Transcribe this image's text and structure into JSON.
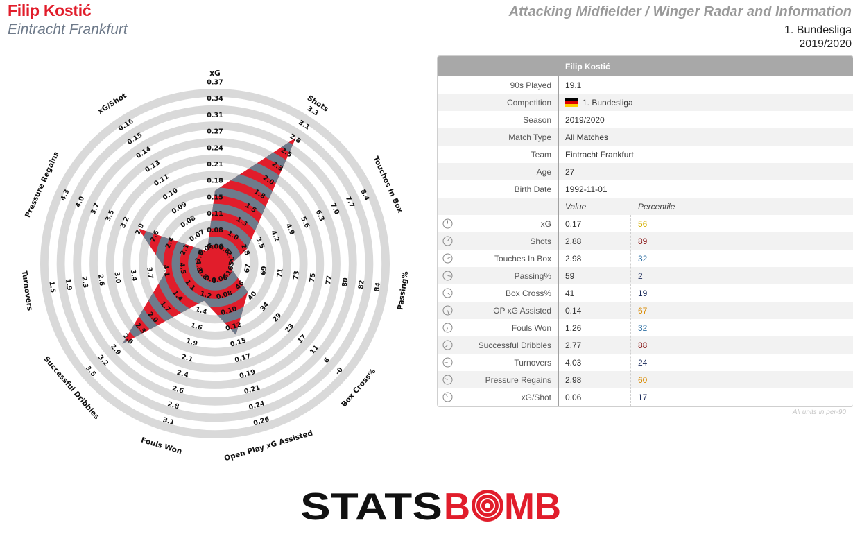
{
  "header": {
    "player_name": "Filip Kostić",
    "team_name": "Eintracht Frankfurt",
    "title": "Attacking Midfielder / Winger Radar and Information",
    "league": "1. Bundesliga",
    "season": "2019/2020"
  },
  "colors": {
    "red": "#e11d2b",
    "slate": "#6e7b8b",
    "ring": "#d9d9d9",
    "pct_green": "#1f7a2a",
    "pct_yellow": "#d4b000",
    "pct_orange": "#d98a00",
    "pct_darkred": "#8b1a1a",
    "pct_blue": "#2e6fa3",
    "pct_navy": "#1a2a5a"
  },
  "chart_data": {
    "type": "radar",
    "axes": [
      {
        "name": "xG",
        "value": 0.17,
        "ticks": [
          "0.06",
          "0.08",
          "0.11",
          "0.15",
          "0.18",
          "0.21",
          "0.24",
          "0.27",
          "0.31",
          "0.34",
          "0.37"
        ],
        "tick_start": 0.06,
        "tick_step": 0.031
      },
      {
        "name": "Shots",
        "value": 2.88,
        "ticks": [
          "0.8",
          "1.0",
          "1.3",
          "1.5",
          "1.8",
          "2.0",
          "2.3",
          "2.5",
          "2.8",
          "3.1",
          "3.3"
        ],
        "tick_start": 0.8,
        "tick_step": 0.253
      },
      {
        "name": "Touches In Box",
        "value": 2.98,
        "ticks": [
          "2.1",
          "2.8",
          "3.5",
          "4.2",
          "4.9",
          "5.6",
          "6.3",
          "7.0",
          "7.7",
          "8.4"
        ],
        "tick_start": 2.1,
        "tick_step": 0.7
      },
      {
        "name": "Passing%",
        "value": 59,
        "ticks": [
          "65",
          "67",
          "69",
          "71",
          "73",
          "75",
          "77",
          "80",
          "82",
          "84"
        ],
        "tick_start": 65,
        "tick_step": 2.1
      },
      {
        "name": "Box Cross%",
        "value": 41,
        "ticks": [
          "51",
          "46",
          "40",
          "34",
          "29",
          "23",
          "17",
          "11",
          "6",
          "-0"
        ],
        "tick_start": 51,
        "tick_step": -5.7
      },
      {
        "name": "Open Play xG Assisted",
        "value": 0.14,
        "ticks": [
          "0.06",
          "0.08",
          "0.10",
          "0.12",
          "0.15",
          "0.17",
          "0.19",
          "0.21",
          "0.24",
          "0.26"
        ],
        "tick_start": 0.06,
        "tick_step": 0.022
      },
      {
        "name": "Fouls Won",
        "value": 1.26,
        "ticks": [
          "0.9",
          "1.2",
          "1.4",
          "1.6",
          "1.9",
          "2.1",
          "2.4",
          "2.6",
          "2.8",
          "3.1"
        ],
        "tick_start": 0.9,
        "tick_step": 0.244
      },
      {
        "name": "Successful Dribbles",
        "value": 2.77,
        "ticks": [
          "0.8",
          "1.1",
          "1.4",
          "1.7",
          "2.0",
          "2.3",
          "2.6",
          "2.9",
          "3.2",
          "3.5"
        ],
        "tick_start": 0.8,
        "tick_step": 0.3
      },
      {
        "name": "Turnovers",
        "value": 4.03,
        "ticks": [
          "4.8",
          "4.5",
          "4.1",
          "3.7",
          "3.4",
          "3.0",
          "2.6",
          "2.3",
          "1.9",
          "1.5"
        ],
        "tick_start": 4.8,
        "tick_step": -0.367
      },
      {
        "name": "Pressure Regains",
        "value": 2.98,
        "ticks": [
          "1.8",
          "2.1",
          "2.4",
          "2.6",
          "2.9",
          "3.2",
          "3.5",
          "3.7",
          "4.0",
          "4.3"
        ],
        "tick_start": 1.8,
        "tick_step": 0.278
      },
      {
        "name": "xG/Shot",
        "value": 0.06,
        "ticks": [
          "0.06",
          "0.07",
          "0.08",
          "0.09",
          "0.10",
          "0.11",
          "0.13",
          "0.14",
          "0.15",
          "0.16"
        ],
        "tick_start": 0.06,
        "tick_step": 0.0114
      }
    ]
  },
  "table": {
    "header": "Filip Kostić",
    "info_rows": [
      {
        "label": "90s Played",
        "value": "19.1"
      },
      {
        "label": "Competition",
        "value": "1. Bundesliga",
        "flag": "germany-flag"
      },
      {
        "label": "Season",
        "value": "2019/2020"
      },
      {
        "label": "Match Type",
        "value": "All Matches"
      },
      {
        "label": "Team",
        "value": "Eintracht Frankfurt"
      },
      {
        "label": "Age",
        "value": "27"
      },
      {
        "label": "Birth Date",
        "value": "1992-11-01"
      }
    ],
    "value_header": "Value",
    "percentile_header": "Percentile",
    "metric_rows": [
      {
        "label": "xG",
        "value": "0.17",
        "percentile": "56",
        "color": "#d4b000"
      },
      {
        "label": "Shots",
        "value": "2.88",
        "percentile": "89",
        "color": "#8b1a1a"
      },
      {
        "label": "Touches In Box",
        "value": "2.98",
        "percentile": "32",
        "color": "#2e6fa3"
      },
      {
        "label": "Passing%",
        "value": "59",
        "percentile": "2",
        "color": "#1a2a5a"
      },
      {
        "label": "Box Cross%",
        "value": "41",
        "percentile": "19",
        "color": "#1a2a5a"
      },
      {
        "label": "OP xG Assisted",
        "value": "0.14",
        "percentile": "67",
        "color": "#d98a00"
      },
      {
        "label": "Fouls Won",
        "value": "1.26",
        "percentile": "32",
        "color": "#2e6fa3"
      },
      {
        "label": "Successful Dribbles",
        "value": "2.77",
        "percentile": "88",
        "color": "#8b1a1a"
      },
      {
        "label": "Turnovers",
        "value": "4.03",
        "percentile": "24",
        "color": "#1a2a5a"
      },
      {
        "label": "Pressure Regains",
        "value": "2.98",
        "percentile": "60",
        "color": "#d98a00"
      },
      {
        "label": "xG/Shot",
        "value": "0.06",
        "percentile": "17",
        "color": "#1a2a5a"
      }
    ],
    "note": "All units in per-90"
  },
  "logo": {
    "text_left": "STATS",
    "text_right_1": "B",
    "text_right_2": "MB"
  }
}
